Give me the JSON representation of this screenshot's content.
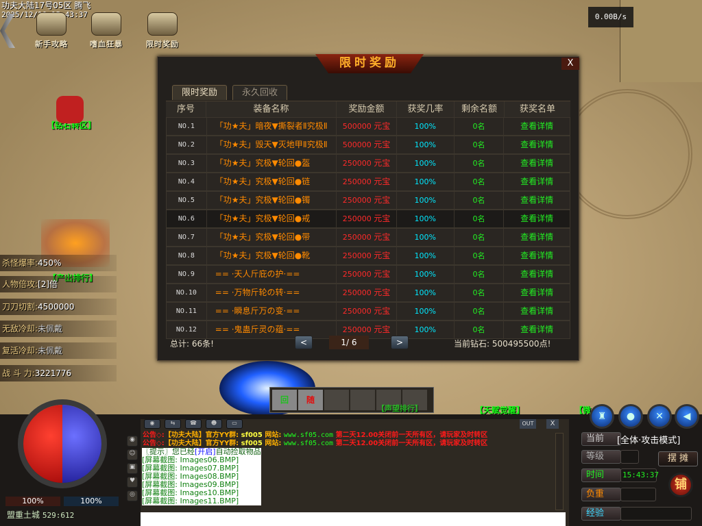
{
  "server": {
    "name": "功夫大陆17号05区",
    "player": "腾飞",
    "datetime": "2025/12/10 15:43:37"
  },
  "top_buttons": [
    {
      "label": "新手攻略",
      "icon": "scroll-icon"
    },
    {
      "label": "嗜血狂暴",
      "icon": "sword-axe-icon"
    },
    {
      "label": "限时奖励",
      "icon": "treasure-icon"
    }
  ],
  "net_speed": "0.00B/s",
  "npc_labels": {
    "diamond": "【钻石转区】",
    "ranking": "【产出排行】",
    "talent": "【天赋觉醒】",
    "micro": "【微",
    "hidden": "【声望排行】"
  },
  "stats": [
    {
      "label": "杀怪爆率:",
      "value": "450%"
    },
    {
      "label": "人物倍攻:",
      "value": "[2]倍"
    },
    {
      "label": "刀刀切割:",
      "value": "4500000"
    },
    {
      "label": "无敌冷却:",
      "value": "未佩戴"
    },
    {
      "label": "复活冷却:",
      "value": "未佩戴"
    },
    {
      "label": "战 斗 力:",
      "value": "3221776"
    }
  ],
  "panel": {
    "title": "限时奖励",
    "close": "X",
    "tabs": [
      {
        "label": "限时奖励",
        "active": true
      },
      {
        "label": "永久回收",
        "active": false
      }
    ],
    "columns": [
      "序号",
      "装备名称",
      "奖励金额",
      "获奖几率",
      "剩余名额",
      "获奖名单"
    ],
    "rows": [
      {
        "no": "NO.1",
        "name": "「功★夫」暗夜▼撕裂者Ⅱ究极Ⅱ",
        "amount": "500000",
        "unit": "元宝",
        "rate": "100%",
        "left": "0名",
        "link": "查看详情"
      },
      {
        "no": "NO.2",
        "name": "「功★夫」毁天▼灭地甲Ⅱ究极Ⅱ",
        "amount": "500000",
        "unit": "元宝",
        "rate": "100%",
        "left": "0名",
        "link": "查看详情"
      },
      {
        "no": "NO.3",
        "name": "「功★夫」究极▼轮回●盔",
        "amount": "250000",
        "unit": "元宝",
        "rate": "100%",
        "left": "0名",
        "link": "查看详情"
      },
      {
        "no": "NO.4",
        "name": "「功★夫」究极▼轮回●链",
        "amount": "250000",
        "unit": "元宝",
        "rate": "100%",
        "left": "0名",
        "link": "查看详情"
      },
      {
        "no": "NO.5",
        "name": "「功★夫」究极▼轮回●镯",
        "amount": "250000",
        "unit": "元宝",
        "rate": "100%",
        "left": "0名",
        "link": "查看详情"
      },
      {
        "no": "NO.6",
        "name": "「功★夫」究极▼轮回●戒",
        "amount": "250000",
        "unit": "元宝",
        "rate": "100%",
        "left": "0名",
        "link": "查看详情"
      },
      {
        "no": "NO.7",
        "name": "「功★夫」究极▼轮回●带",
        "amount": "250000",
        "unit": "元宝",
        "rate": "100%",
        "left": "0名",
        "link": "查看详情"
      },
      {
        "no": "NO.8",
        "name": "「功★夫」究极▼轮回●靴",
        "amount": "250000",
        "unit": "元宝",
        "rate": "100%",
        "left": "0名",
        "link": "查看详情"
      },
      {
        "no": "NO.9",
        "name": "== ·天人斤庇の护·==",
        "amount": "250000",
        "unit": "元宝",
        "rate": "100%",
        "left": "0名",
        "link": "查看详情"
      },
      {
        "no": "NO.10",
        "name": "== ·万物斤轮の转·==",
        "amount": "250000",
        "unit": "元宝",
        "rate": "100%",
        "left": "0名",
        "link": "查看详情"
      },
      {
        "no": "NO.11",
        "name": "== ·瞬息斤万の变·==",
        "amount": "250000",
        "unit": "元宝",
        "rate": "100%",
        "left": "0名",
        "link": "查看详情"
      },
      {
        "no": "NO.12",
        "name": "== ·鬼蛊斤灵の蕴·==",
        "amount": "250000",
        "unit": "元宝",
        "rate": "100%",
        "left": "0名",
        "link": "查看详情"
      }
    ],
    "total": "总计: 66条!",
    "page": "1/ 6",
    "prev": "<",
    "next": ">",
    "diamonds": "当前钻石: 500495500点!"
  },
  "skillbar": {
    "slot1": "回",
    "slot2": "随"
  },
  "hp_pct": "100%",
  "mp_pct": "100%",
  "location": "盟重土城",
  "coords": "529:612",
  "chat": {
    "out": "OUT",
    "close": "X",
    "notices": [
      {
        "prefix": "公告◇:",
        "game": "【功夫大陆】",
        "group": "官方YY群:",
        "group_id": "sf005",
        "site_label": "网站:",
        "site": "www.sf05.com",
        "msg": "第二天12.00关闭前一天所有区，请玩家及时转区"
      },
      {
        "prefix": "公告◇:",
        "game": "【功夫大陆】",
        "group": "官方YY群:",
        "group_id": "sf005",
        "site_label": "网站:",
        "site": "www.sf05.com",
        "msg": "第二天12.00关闭前一天所有区，请玩家及时转区"
      }
    ],
    "tip": {
      "a": "〖提示〗您已经",
      "b": "[开启]",
      "c": "自动捡取物品"
    },
    "screenshots": [
      "[屏幕截图: Images06.BMP]",
      "[屏幕截图: Images07.BMP]",
      "[屏幕截图: Images08.BMP]",
      "[屏幕截图: Images09.BMP]",
      "[屏幕截图: Images10.BMP]",
      "[屏幕截图: Images11.BMP]"
    ]
  },
  "right_panel": {
    "mode_label": "当前",
    "mode": "[全体·攻击模式]",
    "level_label": "等级",
    "time_label": "时间",
    "time": "15:43:37",
    "weight_label": "负重",
    "exp_label": "经验",
    "stall": "摆 摊",
    "shop": "铺"
  },
  "colors": {
    "hp": "#d01010",
    "mp": "#2a2ad0",
    "item_name": "#ff8a00",
    "amount": "#ff2a2a",
    "rate": "#00e8ff",
    "green": "#22ee22",
    "title": "#ffb02a"
  }
}
